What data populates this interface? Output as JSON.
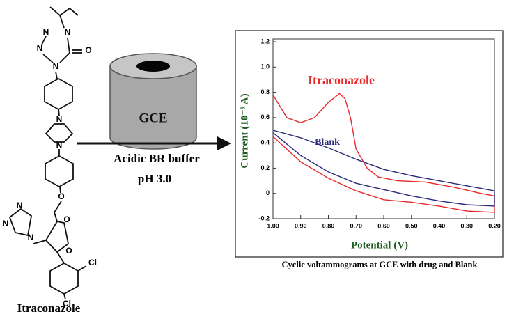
{
  "chart_data": {
    "type": "line",
    "x_label": "Potential (V)",
    "y_label": "Current (10⁻⁵ A)",
    "caption": "Cyclic voltammograms at GCE with drug and Blank",
    "xlim": [
      1.0,
      0.2
    ],
    "ylim": [
      -0.2,
      1.2
    ],
    "xticks": [
      {
        "value": 1.0,
        "label": "1.00"
      },
      {
        "value": 0.9,
        "label": "0.90"
      },
      {
        "value": 0.8,
        "label": "0.80"
      },
      {
        "value": 0.7,
        "label": "0.70"
      },
      {
        "value": 0.6,
        "label": "0.60"
      },
      {
        "value": 0.5,
        "label": "0.50"
      },
      {
        "value": 0.4,
        "label": "0.40"
      },
      {
        "value": 0.3,
        "label": "0.30"
      },
      {
        "value": 0.2,
        "label": "0.20"
      }
    ],
    "yticks": [
      {
        "value": 1.2,
        "label": "1.2"
      },
      {
        "value": 1.0,
        "label": "1.0"
      },
      0.8,
      0.6,
      0.4,
      0.2,
      0,
      -0.2
    ],
    "series": [
      {
        "name": "Itraconazole",
        "color": "#e8282a",
        "x": [
          1.0,
          0.95,
          0.9,
          0.85,
          0.8,
          0.76,
          0.74,
          0.72,
          0.7,
          0.66,
          0.62,
          0.55,
          0.45,
          0.35,
          0.25,
          0.2,
          0.2,
          0.3,
          0.4,
          0.5,
          0.6,
          0.7,
          0.8,
          0.9,
          1.0
        ],
        "values": [
          0.78,
          0.6,
          0.56,
          0.6,
          0.72,
          0.79,
          0.75,
          0.6,
          0.35,
          0.2,
          0.13,
          0.1,
          0.09,
          0.05,
          0.0,
          -0.02,
          -0.15,
          -0.14,
          -0.1,
          -0.07,
          -0.05,
          0.02,
          0.12,
          0.25,
          0.45
        ]
      },
      {
        "name": "Blank",
        "color": "#2a2a7a",
        "x": [
          1.0,
          0.9,
          0.8,
          0.7,
          0.6,
          0.5,
          0.4,
          0.3,
          0.2,
          0.2,
          0.3,
          0.4,
          0.5,
          0.6,
          0.7,
          0.8,
          0.9,
          1.0
        ],
        "values": [
          0.5,
          0.44,
          0.36,
          0.27,
          0.19,
          0.14,
          0.1,
          0.06,
          0.02,
          -0.1,
          -0.09,
          -0.06,
          -0.02,
          0.03,
          0.08,
          0.17,
          0.3,
          0.48
        ]
      }
    ]
  },
  "diagram": {
    "electrode": "GCE",
    "condition": [
      "Acidic BR buffer",
      "pH 3.0"
    ],
    "molecule_name": "Itraconazole",
    "atoms": [
      "N",
      "N",
      "N",
      "N",
      "O",
      "N",
      "N",
      "O",
      "N",
      "N",
      "N",
      "O",
      "O",
      "Cl",
      "Cl"
    ]
  }
}
